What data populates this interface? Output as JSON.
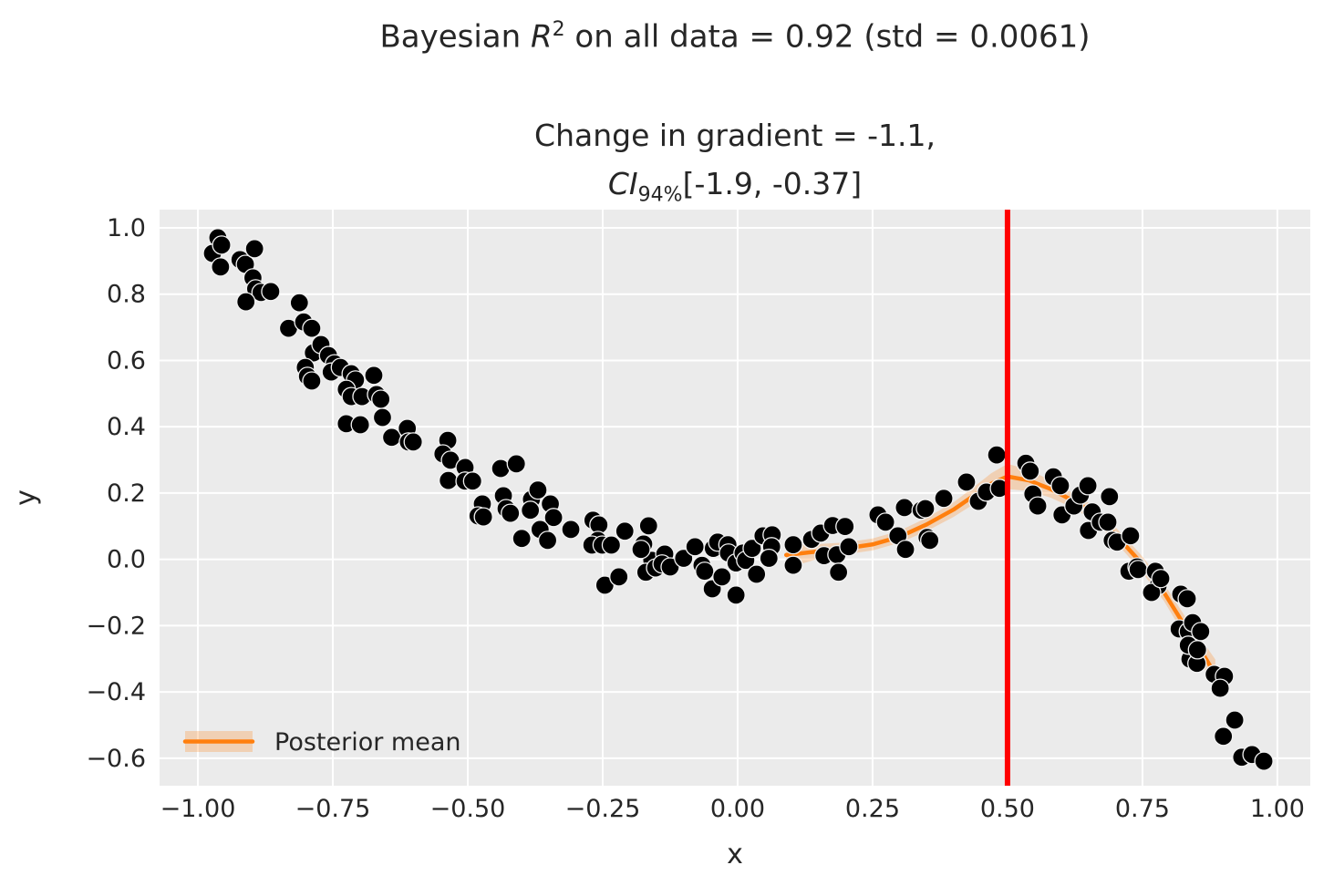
{
  "figure": {
    "title": {
      "prefix": "Bayesian ",
      "r": "R",
      "r_sup": "2",
      "suffix": " on all data = 0.92 (std = 0.0061)"
    },
    "subtitle": {
      "line1": "Change in gradient = -1.1,",
      "ci_label": "CI",
      "ci_sub": "94%",
      "ci_interval": "[-1.9, -0.37]"
    }
  },
  "colors": {
    "plot_bg": "#ebebeb",
    "grid": "#ffffff",
    "scatter": "#000000",
    "scatter_edge": "#f2f2f2",
    "line": "#ff7f0e",
    "band": "#ff7f0e",
    "vline": "#ff0000",
    "text": "#262626"
  },
  "chart_data": {
    "type": "scatter",
    "title": "Bayesian R^2 on all data = 0.92 (std = 0.0061)",
    "subtitle": "Change in gradient = -1.1, CI_94% [-1.9, -0.37]",
    "xlabel": "x",
    "ylabel": "y",
    "xlim": [
      -1.071,
      1.061
    ],
    "ylim": [
      -0.683,
      1.055
    ],
    "grid": true,
    "x_ticks": [
      -1.0,
      -0.75,
      -0.5,
      -0.25,
      0.0,
      0.25,
      0.5,
      0.75,
      1.0
    ],
    "x_tick_labels": [
      "−1.00",
      "−0.75",
      "−0.50",
      "−0.25",
      "0.00",
      "0.25",
      "0.50",
      "0.75",
      "1.00"
    ],
    "y_ticks": [
      1.0,
      0.8,
      0.6,
      0.4,
      0.2,
      0.0,
      -0.2,
      -0.4,
      -0.6
    ],
    "y_tick_labels": [
      "1.0",
      "0.8",
      "0.6",
      "0.4",
      "0.2",
      "0.0",
      "−0.2",
      "−0.4",
      "−0.6"
    ],
    "legend": {
      "label": "Posterior mean",
      "position": "lower left"
    },
    "vline": {
      "x": 0.5
    },
    "scatter_points": [
      [
        -0.963,
        0.97
      ],
      [
        -0.973,
        0.923
      ],
      [
        -0.956,
        0.948
      ],
      [
        -0.958,
        0.882
      ],
      [
        -0.922,
        0.904
      ],
      [
        -0.912,
        0.89
      ],
      [
        -0.895,
        0.937
      ],
      [
        -0.898,
        0.849
      ],
      [
        -0.893,
        0.816
      ],
      [
        -0.883,
        0.805
      ],
      [
        -0.865,
        0.808
      ],
      [
        -0.911,
        0.777
      ],
      [
        -0.812,
        0.774
      ],
      [
        -0.832,
        0.697
      ],
      [
        -0.804,
        0.716
      ],
      [
        -0.789,
        0.697
      ],
      [
        -0.786,
        0.623
      ],
      [
        -0.772,
        0.648
      ],
      [
        -0.758,
        0.615
      ],
      [
        -0.747,
        0.59
      ],
      [
        -0.753,
        0.565
      ],
      [
        -0.801,
        0.579
      ],
      [
        -0.797,
        0.552
      ],
      [
        -0.789,
        0.538
      ],
      [
        -0.736,
        0.579
      ],
      [
        -0.716,
        0.56
      ],
      [
        -0.708,
        0.541
      ],
      [
        -0.725,
        0.513
      ],
      [
        -0.716,
        0.491
      ],
      [
        -0.696,
        0.491
      ],
      [
        -0.674,
        0.555
      ],
      [
        -0.669,
        0.497
      ],
      [
        -0.661,
        0.483
      ],
      [
        -0.725,
        0.409
      ],
      [
        -0.699,
        0.406
      ],
      [
        -0.658,
        0.428
      ],
      [
        -0.641,
        0.368
      ],
      [
        -0.612,
        0.395
      ],
      [
        -0.61,
        0.354
      ],
      [
        -0.601,
        0.354
      ],
      [
        -0.537,
        0.359
      ],
      [
        -0.546,
        0.318
      ],
      [
        -0.532,
        0.299
      ],
      [
        -0.505,
        0.277
      ],
      [
        -0.536,
        0.238
      ],
      [
        -0.505,
        0.236
      ],
      [
        -0.491,
        0.236
      ],
      [
        -0.439,
        0.274
      ],
      [
        -0.41,
        0.288
      ],
      [
        -0.473,
        0.167
      ],
      [
        -0.481,
        0.131
      ],
      [
        -0.471,
        0.128
      ],
      [
        -0.434,
        0.192
      ],
      [
        -0.429,
        0.153
      ],
      [
        -0.421,
        0.139
      ],
      [
        -0.382,
        0.181
      ],
      [
        -0.384,
        0.148
      ],
      [
        -0.37,
        0.209
      ],
      [
        -0.347,
        0.167
      ],
      [
        -0.341,
        0.126
      ],
      [
        -0.366,
        0.09
      ],
      [
        -0.4,
        0.063
      ],
      [
        -0.352,
        0.057
      ],
      [
        -0.309,
        0.09
      ],
      [
        -0.268,
        0.118
      ],
      [
        -0.257,
        0.104
      ],
      [
        -0.259,
        0.057
      ],
      [
        -0.27,
        0.043
      ],
      [
        -0.251,
        0.043
      ],
      [
        -0.234,
        0.043
      ],
      [
        -0.209,
        0.085
      ],
      [
        -0.165,
        0.101
      ],
      [
        -0.246,
        -0.078
      ],
      [
        -0.22,
        -0.053
      ],
      [
        -0.174,
        0.046
      ],
      [
        -0.159,
        -0.003
      ],
      [
        -0.179,
        0.03
      ],
      [
        -0.17,
        -0.039
      ],
      [
        -0.152,
        -0.026
      ],
      [
        -0.135,
        0.016
      ],
      [
        -0.14,
        -0.014
      ],
      [
        -0.125,
        -0.023
      ],
      [
        -0.1,
        0.003
      ],
      [
        -0.079,
        0.038
      ],
      [
        -0.066,
        -0.018
      ],
      [
        -0.061,
        -0.036
      ],
      [
        -0.045,
        0.033
      ],
      [
        -0.037,
        0.052
      ],
      [
        -0.047,
        -0.089
      ],
      [
        -0.029,
        -0.053
      ],
      [
        -0.018,
        0.044
      ],
      [
        -0.017,
        0.019
      ],
      [
        -0.003,
        -0.011
      ],
      [
        0.01,
        0.019
      ],
      [
        0.015,
        -0.003
      ],
      [
        -0.003,
        -0.108
      ],
      [
        0.027,
        0.033
      ],
      [
        0.035,
        -0.045
      ],
      [
        0.047,
        0.071
      ],
      [
        0.064,
        0.074
      ],
      [
        0.063,
        0.038
      ],
      [
        0.058,
        0.003
      ],
      [
        0.103,
        0.044
      ],
      [
        0.103,
        -0.018
      ],
      [
        0.137,
        0.06
      ],
      [
        0.154,
        0.079
      ],
      [
        0.16,
        0.011
      ],
      [
        0.176,
        0.102
      ],
      [
        0.184,
        0.014
      ],
      [
        0.187,
        -0.039
      ],
      [
        0.199,
        0.099
      ],
      [
        0.206,
        0.038
      ],
      [
        0.26,
        0.134
      ],
      [
        0.274,
        0.112
      ],
      [
        0.297,
        0.071
      ],
      [
        0.309,
        0.156
      ],
      [
        0.311,
        0.03
      ],
      [
        0.34,
        0.148
      ],
      [
        0.348,
        0.153
      ],
      [
        0.351,
        0.066
      ],
      [
        0.356,
        0.057
      ],
      [
        0.382,
        0.184
      ],
      [
        0.424,
        0.233
      ],
      [
        0.446,
        0.175
      ],
      [
        0.461,
        0.203
      ],
      [
        0.48,
        0.315
      ],
      [
        0.485,
        0.214
      ],
      [
        0.534,
        0.29
      ],
      [
        0.542,
        0.266
      ],
      [
        0.547,
        0.197
      ],
      [
        0.556,
        0.161
      ],
      [
        0.585,
        0.249
      ],
      [
        0.598,
        0.222
      ],
      [
        0.601,
        0.134
      ],
      [
        0.623,
        0.161
      ],
      [
        0.635,
        0.194
      ],
      [
        0.649,
        0.222
      ],
      [
        0.65,
        0.087
      ],
      [
        0.657,
        0.143
      ],
      [
        0.672,
        0.112
      ],
      [
        0.686,
        0.112
      ],
      [
        0.689,
        0.189
      ],
      [
        0.694,
        0.057
      ],
      [
        0.703,
        0.052
      ],
      [
        0.728,
        0.071
      ],
      [
        0.725,
        -0.036
      ],
      [
        0.74,
        -0.023
      ],
      [
        0.742,
        -0.031
      ],
      [
        0.774,
        -0.036
      ],
      [
        0.779,
        -0.08
      ],
      [
        0.767,
        -0.1
      ],
      [
        0.784,
        -0.058
      ],
      [
        0.821,
        -0.105
      ],
      [
        0.833,
        -0.119
      ],
      [
        0.818,
        -0.21
      ],
      [
        0.835,
        -0.218
      ],
      [
        0.843,
        -0.191
      ],
      [
        0.846,
        -0.284
      ],
      [
        0.838,
        -0.301
      ],
      [
        0.851,
        -0.314
      ],
      [
        0.858,
        -0.218
      ],
      [
        0.835,
        -0.259
      ],
      [
        0.852,
        -0.273
      ],
      [
        0.883,
        -0.347
      ],
      [
        0.902,
        -0.353
      ],
      [
        0.894,
        -0.389
      ],
      [
        0.921,
        -0.485
      ],
      [
        0.9,
        -0.534
      ],
      [
        0.934,
        -0.597
      ],
      [
        0.953,
        -0.589
      ],
      [
        0.975,
        -0.609
      ]
    ],
    "posterior_mean": {
      "x": [
        0.09,
        0.15,
        0.2,
        0.25,
        0.3,
        0.35,
        0.4,
        0.44,
        0.47,
        0.5,
        0.54,
        0.58,
        0.62,
        0.66,
        0.7,
        0.745,
        0.79,
        0.83,
        0.86,
        0.885
      ],
      "y": [
        0.013,
        0.024,
        0.033,
        0.045,
        0.068,
        0.105,
        0.15,
        0.195,
        0.228,
        0.25,
        0.238,
        0.212,
        0.178,
        0.139,
        0.075,
        -0.006,
        -0.1,
        -0.205,
        -0.28,
        -0.347
      ],
      "ci_halfwidth": [
        0.04,
        0.022,
        0.018,
        0.018,
        0.018,
        0.02,
        0.022,
        0.026,
        0.032,
        0.038,
        0.032,
        0.026,
        0.022,
        0.022,
        0.022,
        0.024,
        0.026,
        0.03,
        0.036,
        0.045
      ]
    }
  }
}
